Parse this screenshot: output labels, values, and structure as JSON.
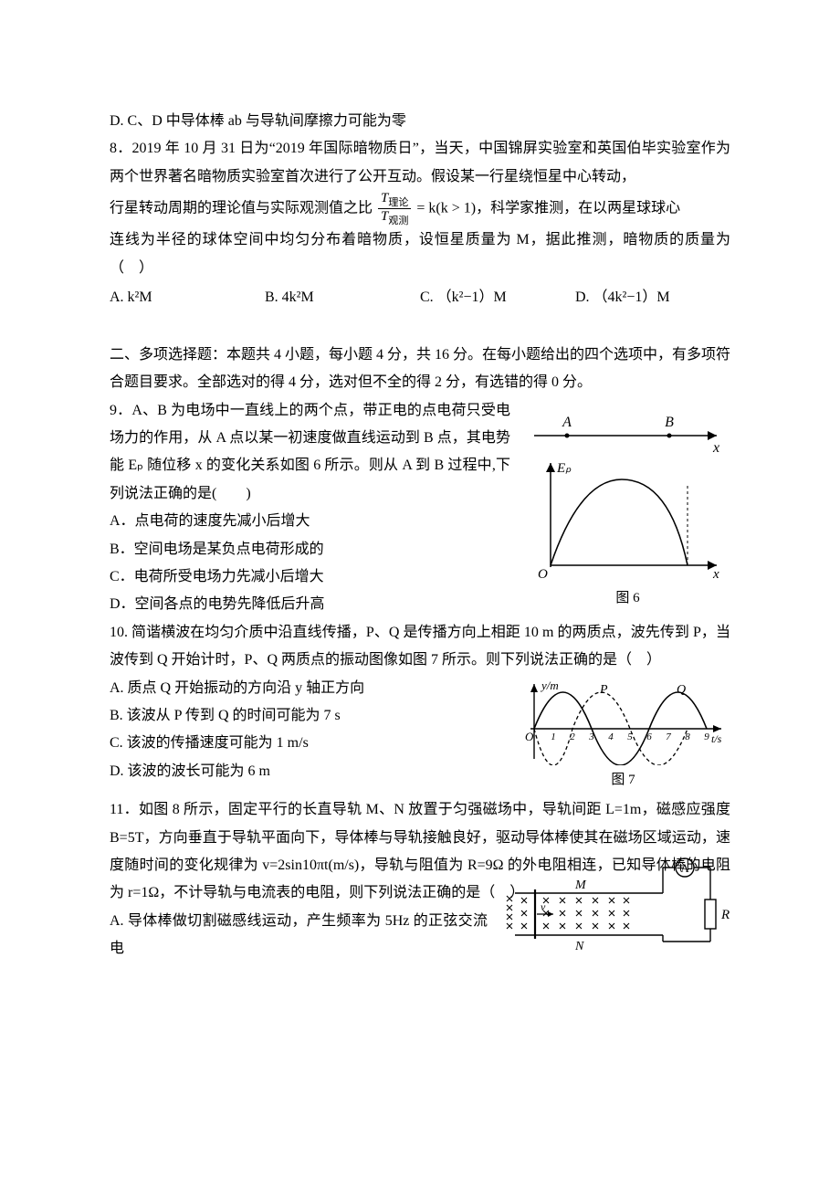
{
  "colors": {
    "text": "#000000",
    "bg": "#ffffff",
    "line": "#000000"
  },
  "typography": {
    "body_font": "SimSun",
    "body_size_pt": 12,
    "line_height": 1.9
  },
  "q7": {
    "optD": "D. C、D 中导体棒 ab 与导轨间摩擦力可能为零"
  },
  "q8": {
    "intro1": "8．2019 年 10 月 31 日为“2019 年国际暗物质日”，当天，中国锦屏实验室和英国伯毕实验室作为两个世界著名暗物质实验室首次进行了公开互动。假设某一行星绕恒星中心转动，",
    "intro2a": "行星转动周期的理论值与实际观测值之比",
    "frac_num": "T",
    "frac_num_sub": "理论",
    "frac_den": "T",
    "frac_den_sub": "观测",
    "intro2b": " = k(k > 1)，科学家推测，在以两星球球心",
    "intro3": "连线为半径的球体空间中均匀分布着暗物质，设恒星质量为 M，据此推测，暗物质的质量为（　）",
    "options": {
      "a": "A.  k²M",
      "b": "B.  4k²M",
      "c": "C. （k²−1）M",
      "d": "D. （4k²−1）M"
    }
  },
  "section2": {
    "heading": "二、多项选择题：本题共 4 小题，每小题 4 分，共 16 分。在每小题给出的四个选项中，有多项符合题目要求。全部选对的得 4 分，选对但不全的得 2 分，有选错的得 0 分。"
  },
  "q9": {
    "stem1": "9．A、B 为电场中一直线上的两个点，带正电的点电荷只受电场力的作用，从 A 点以某一初速度做直线运动到 B 点，其电势能 Eₚ 随位移 x 的变化关系如图 6 所示。则从 A 到 B 过程中,下列说法正确的是(　　)",
    "optA": "A．点电荷的速度先减小后增大",
    "optB": "B．空间电场是某负点电荷形成的",
    "optC": "C．电荷所受电场力先减小后增大",
    "optD": "D．空间各点的电势先降低后升高",
    "figure": {
      "caption": "图 6",
      "axis_top": {
        "A_label": "A",
        "B_label": "B",
        "x_label": "x"
      },
      "graph": {
        "y_label": "Eₚ",
        "x_label": "x",
        "origin": "O"
      },
      "stroke": "#000000",
      "bg": "#ffffff"
    }
  },
  "q10": {
    "stem1": "10. 简谐横波在均匀介质中沿直线传播，P、Q 是传播方向上相距 10 m 的两质点，波先传到 P，当波传到 Q 开始计时，P、Q 两质点的振动图像如图 7 所示。则下列说法正确的是（　）",
    "optA": "A. 质点 Q 开始振动的方向沿 y 轴正方向",
    "optB": "B. 该波从 P 传到 Q 的时间可能为 7 s",
    "optC": "C. 该波的传播速度可能为 1 m/s",
    "optD": "D. 该波的波长可能为 6 m",
    "figure": {
      "caption": "图 7",
      "y_label": "y/m",
      "x_label": "t/s",
      "P_label": "P",
      "Q_label": "Q",
      "ticks": [
        "1",
        "2",
        "3",
        "4",
        "5",
        "6",
        "7",
        "8",
        "9"
      ],
      "origin": "O",
      "stroke_solid": "#000000",
      "stroke_dash": "#000000",
      "bg": "#ffffff"
    }
  },
  "q11": {
    "stem1": "11．如图 8 所示，固定平行的长直导轨 M、N 放置于匀强磁场中，导轨间距 L=1m，磁感应强度 B=5T，方向垂直于导轨平面向下，导体棒与导轨接触良好，驱动导体棒使其在磁场区域运动，速度随时间的变化规律为 v=2sin10πt(m/s)，导轨与阻值为 R=9Ω 的外电阻相连，已知导体棒的电阻为 r=1Ω，不计导轨与电流表的电阻，则下列说法正确的是（　）",
    "optA": "A. 导体棒做切割磁感线运动，产生频率为 5Hz 的正弦交流电",
    "figure": {
      "M_label": "M",
      "N_label": "N",
      "R_label": "R",
      "v_label": "v",
      "ammeter": "A",
      "cross_color": "#000000",
      "stroke": "#000000",
      "bg": "#ffffff"
    }
  }
}
